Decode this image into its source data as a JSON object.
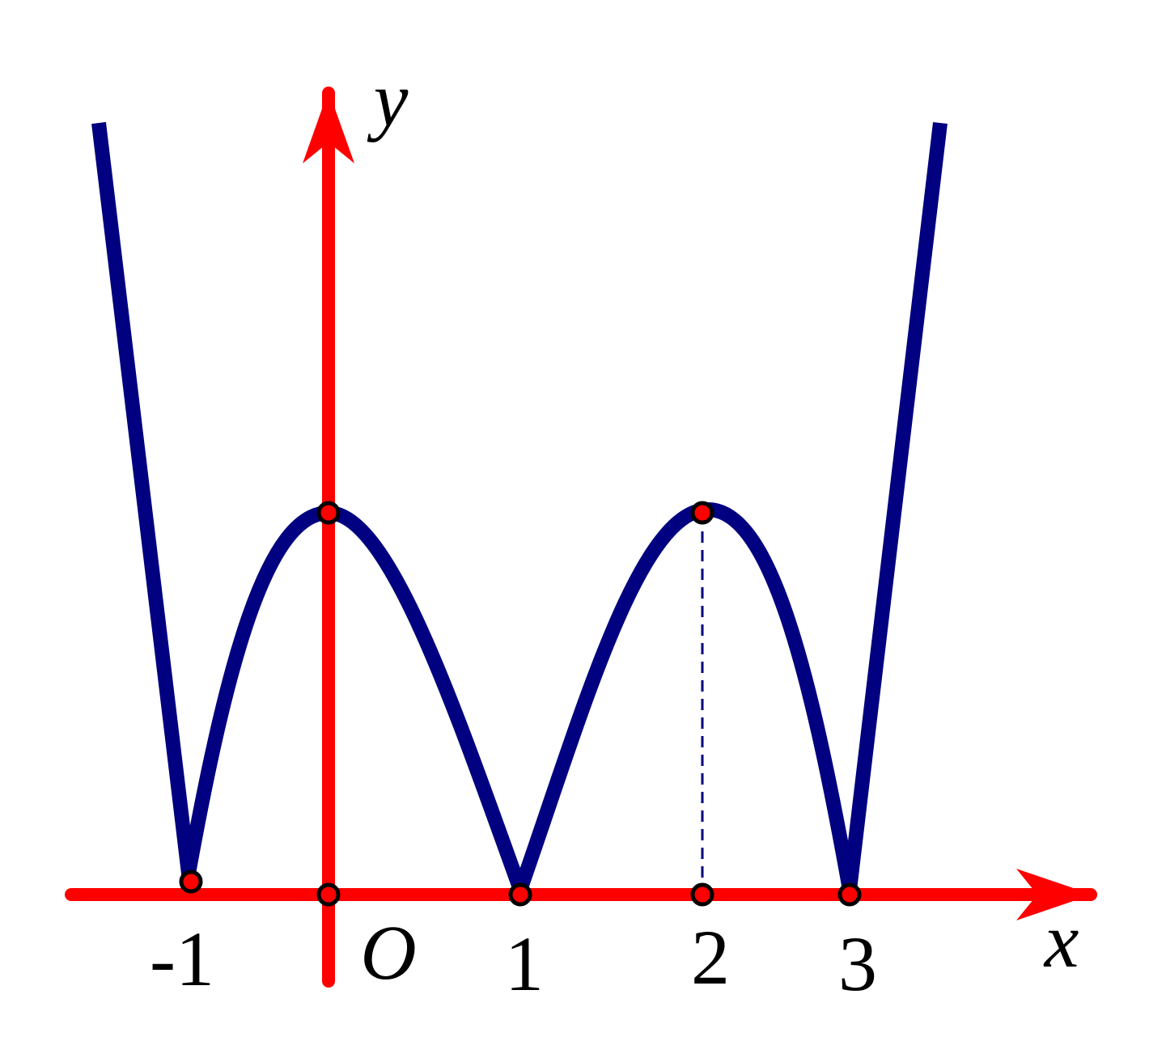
{
  "axes": {
    "x": "x",
    "y": "y",
    "origin": "O"
  },
  "x_labels": [
    "-1",
    "1",
    "2",
    "3"
  ]
}
